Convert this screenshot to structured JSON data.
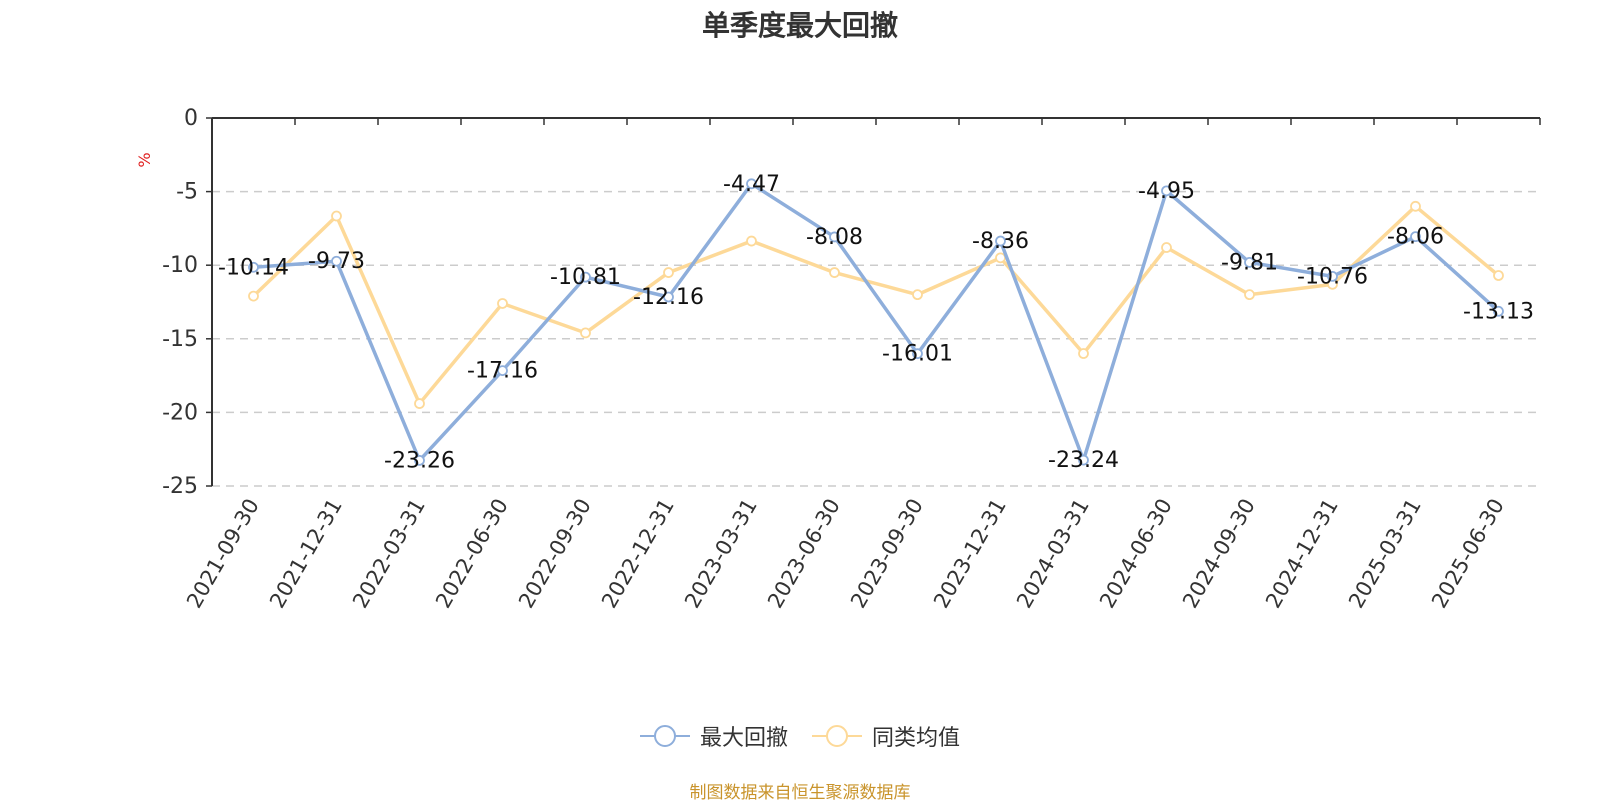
{
  "title": "单季度最大回撤",
  "footer": "制图数据来自恒生聚源数据库",
  "colors": {
    "series1": "#8eaedb",
    "series2": "#fdd998",
    "grid": "#cccccc",
    "axis": "#333333",
    "unit": "#e02020",
    "footer": "#c9942c"
  },
  "legend": [
    {
      "label": "最大回撤",
      "color": "#8eaedb"
    },
    {
      "label": "同类均值",
      "color": "#fdd998"
    }
  ],
  "chart_data": {
    "type": "line",
    "title": "单季度最大回撤",
    "xlabel": "",
    "ylabel": "%",
    "ylim": [
      -25,
      0
    ],
    "yticks": [
      0,
      -5,
      -10,
      -15,
      -20,
      -25
    ],
    "grid": true,
    "legend_position": "bottom",
    "categories": [
      "2021-09-30",
      "2021-12-31",
      "2022-03-31",
      "2022-06-30",
      "2022-09-30",
      "2022-12-31",
      "2023-03-31",
      "2023-06-30",
      "2023-09-30",
      "2023-12-31",
      "2024-03-31",
      "2024-06-30",
      "2024-09-30",
      "2024-12-31",
      "2025-03-31",
      "2025-06-30"
    ],
    "series": [
      {
        "name": "最大回撤",
        "values": [
          -10.14,
          -9.73,
          -23.26,
          -17.16,
          -10.81,
          -12.16,
          -4.47,
          -8.08,
          -16.01,
          -8.36,
          -23.24,
          -4.95,
          -9.81,
          -10.76,
          -8.06,
          -13.13
        ],
        "labels_shown": true
      },
      {
        "name": "同类均值",
        "values": [
          -12.1,
          -6.66,
          -19.4,
          -12.6,
          -14.6,
          -10.5,
          -8.36,
          -10.5,
          -12.0,
          -9.5,
          -16.0,
          -8.8,
          -12.0,
          -11.3,
          -6.0,
          -10.7
        ],
        "labels_shown": false
      }
    ]
  }
}
